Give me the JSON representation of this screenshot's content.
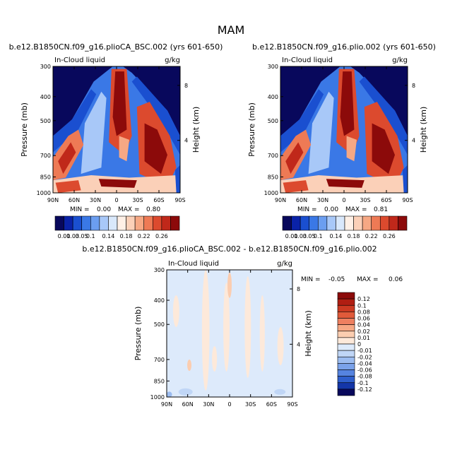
{
  "page_title": "MAM",
  "chart_data": [
    {
      "type": "heatmap",
      "title": "b.e12.B1850CN.f09_g16.plioCA_BSC.002 (yrs 601-650)",
      "left_label": "In-Cloud liquid",
      "right_label": "g/kg",
      "ylabel": "Pressure (mb)",
      "y2label": "Height (km)",
      "xticks": [
        "90N",
        "60N",
        "30N",
        "0",
        "30S",
        "60S",
        "90S"
      ],
      "yticks": [
        "300",
        "400",
        "500",
        "700",
        "850",
        "1000"
      ],
      "y2ticks": [
        "8",
        "4"
      ],
      "stats": {
        "min_label": "MIN =",
        "min": "0.00",
        "max_label": "MAX =",
        "max": "0.80"
      },
      "colorbar": {
        "orientation": "horizontal",
        "labels": [
          "0.01",
          "0.03",
          "0.05",
          "0.1",
          "0.14",
          "0.18",
          "0.22",
          "0.26"
        ],
        "colors": [
          "#08085c",
          "#0a22a8",
          "#1a4fd0",
          "#3a78e6",
          "#6b9ef0",
          "#a8c8f8",
          "#d9e8fb",
          "#fff0e6",
          "#fbd0b8",
          "#f6a884",
          "#ee7a55",
          "#dc4a2e",
          "#c0281a",
          "#8c0a0a"
        ]
      }
    },
    {
      "type": "heatmap",
      "title": "b.e12.B1850CN.f09_g16.plio.002 (yrs 601-650)",
      "left_label": "In-Cloud liquid",
      "right_label": "g/kg",
      "ylabel": "Pressure (mb)",
      "y2label": "Height (km)",
      "xticks": [
        "90N",
        "60N",
        "30N",
        "0",
        "30S",
        "60S",
        "90S"
      ],
      "yticks": [
        "300",
        "400",
        "500",
        "700",
        "850",
        "1000"
      ],
      "y2ticks": [
        "8",
        "4"
      ],
      "stats": {
        "min_label": "MIN =",
        "min": "0.00",
        "max_label": "MAX =",
        "max": "0.81"
      },
      "colorbar": {
        "orientation": "horizontal",
        "labels": [
          "0.01",
          "0.03",
          "0.05",
          "0.1",
          "0.14",
          "0.18",
          "0.22",
          "0.26"
        ],
        "colors": [
          "#08085c",
          "#0a22a8",
          "#1a4fd0",
          "#3a78e6",
          "#6b9ef0",
          "#a8c8f8",
          "#d9e8fb",
          "#fff0e6",
          "#fbd0b8",
          "#f6a884",
          "#ee7a55",
          "#dc4a2e",
          "#c0281a",
          "#8c0a0a"
        ]
      }
    },
    {
      "type": "heatmap",
      "title": "b.e12.B1850CN.f09_g16.plioCA_BSC.002 - b.e12.B1850CN.f09_g16.plio.002",
      "left_label": "In-Cloud liquid",
      "right_label": "g/kg",
      "ylabel": "Pressure (mb)",
      "y2label": "Height (km)",
      "xticks": [
        "90N",
        "60N",
        "30N",
        "0",
        "30S",
        "60S",
        "90S"
      ],
      "yticks": [
        "300",
        "400",
        "500",
        "700",
        "850",
        "1000"
      ],
      "y2ticks": [
        "8",
        "4"
      ],
      "stats": {
        "min_label": "MIN =",
        "min": "-0.05",
        "max_label": "MAX =",
        "max": "0.06"
      },
      "colorbar": {
        "orientation": "vertical",
        "labels": [
          "0.12",
          "0.1",
          "0.08",
          "0.06",
          "0.04",
          "0.02",
          "0.01",
          "0",
          "-0.01",
          "-0.02",
          "-0.04",
          "-0.06",
          "-0.08",
          "-0.1",
          "-0.12"
        ],
        "colors": [
          "#8c0a0a",
          "#b01e12",
          "#cc3a22",
          "#e05a3a",
          "#ee8060",
          "#f6a884",
          "#fbcdb0",
          "#fde9da",
          "#ddeafb",
          "#c0d6f6",
          "#9cbcf0",
          "#7aa2ea",
          "#5684e0",
          "#2f5fcc",
          "#1436a8",
          "#08085c"
        ]
      }
    }
  ]
}
